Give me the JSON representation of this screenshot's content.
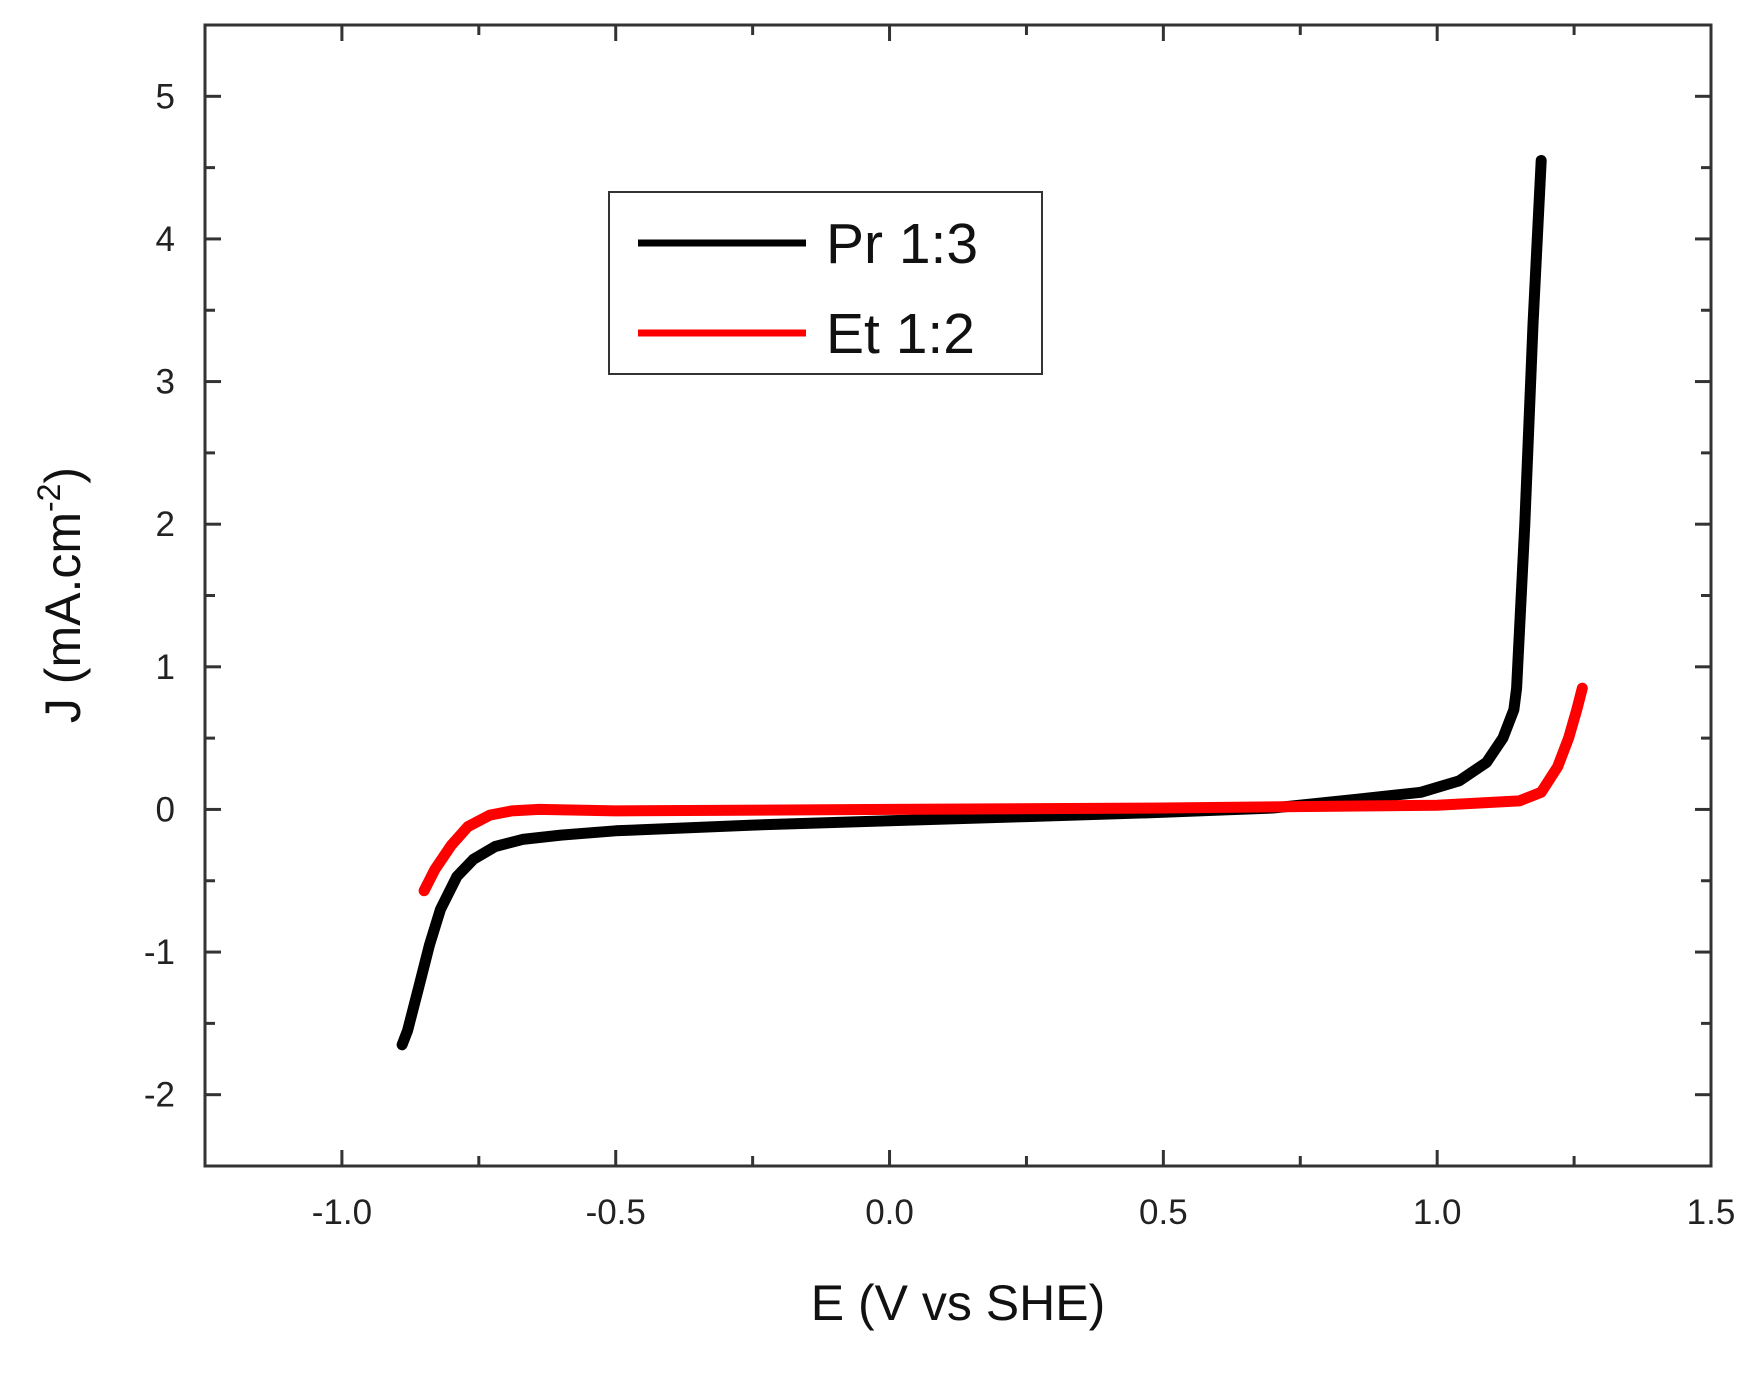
{
  "chart_data": {
    "type": "line",
    "title": "",
    "xlabel": "E (V vs SHE)",
    "ylabel_main": "J (mA.cm",
    "ylabel_sup": "-2",
    "ylabel_close": ")",
    "xlim": [
      -1.25,
      1.5
    ],
    "ylim": [
      -2.5,
      5.5
    ],
    "xticks": [
      -1.0,
      -0.5,
      0.0,
      0.5,
      1.0,
      1.5
    ],
    "xtick_labels": [
      "-1.0",
      "-0.5",
      "0.0",
      "0.5",
      "1.0",
      "1.5"
    ],
    "yticks": [
      -2,
      -1,
      0,
      1,
      2,
      3,
      4,
      5
    ],
    "ytick_labels": [
      "-2",
      "-1",
      "0",
      "1",
      "2",
      "3",
      "4",
      "5"
    ],
    "grid": false,
    "legend_position": "top-left-center",
    "series": [
      {
        "name": "Pr 1:3",
        "color": "#000000",
        "x": [
          -0.89,
          -0.88,
          -0.86,
          -0.84,
          -0.82,
          -0.79,
          -0.76,
          -0.72,
          -0.67,
          -0.6,
          -0.5,
          -0.25,
          0.0,
          0.25,
          0.5,
          0.7,
          0.85,
          0.97,
          1.04,
          1.09,
          1.12,
          1.14,
          1.145,
          1.16,
          1.175,
          1.19
        ],
        "y": [
          -1.65,
          -1.55,
          -1.25,
          -0.95,
          -0.7,
          -0.47,
          -0.35,
          -0.26,
          -0.21,
          -0.18,
          -0.15,
          -0.11,
          -0.08,
          -0.05,
          -0.02,
          0.01,
          0.07,
          0.12,
          0.2,
          0.33,
          0.5,
          0.7,
          0.85,
          2.0,
          3.4,
          4.55
        ]
      },
      {
        "name": "Et 1:2",
        "color": "#ff0000",
        "x": [
          -0.85,
          -0.83,
          -0.8,
          -0.77,
          -0.73,
          -0.69,
          -0.64,
          -0.5,
          0.0,
          0.5,
          1.0,
          1.15,
          1.19,
          1.22,
          1.24,
          1.255,
          1.265
        ],
        "y": [
          -0.57,
          -0.42,
          -0.25,
          -0.12,
          -0.04,
          -0.01,
          0.0,
          -0.01,
          0.0,
          0.01,
          0.03,
          0.06,
          0.12,
          0.3,
          0.5,
          0.7,
          0.85
        ]
      }
    ]
  }
}
